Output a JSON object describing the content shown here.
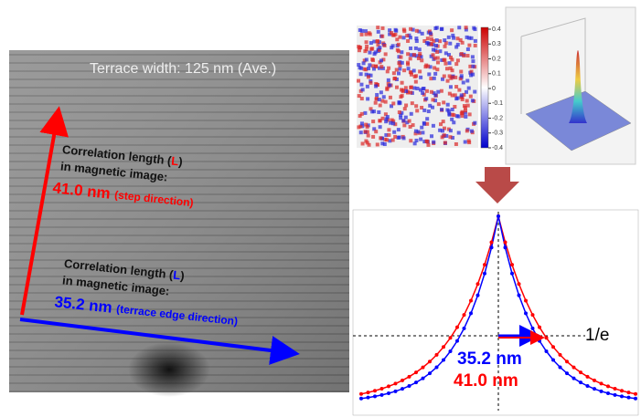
{
  "left_image": {
    "caption": "Terrace width: 125 nm (Ave.)",
    "step_note": {
      "line1_pre": "Correlation length (",
      "line1_L": "L",
      "line1_post": ")",
      "line2": "in magnetic image:",
      "value": "41.0 nm",
      "direction": "(step direction)"
    },
    "edge_note": {
      "line1_pre": "Correlation length (",
      "line1_L": "L",
      "line1_post": ")",
      "line2": "in magnetic image:",
      "value": "35.2 nm",
      "direction": "(terrace edge direction)"
    }
  },
  "colorbar": {
    "ticks": [
      0.4,
      0.3,
      0.2,
      0.1,
      0,
      -0.1,
      -0.2,
      -0.3,
      -0.4
    ]
  },
  "profile_plot": {
    "threshold_label": "1/e",
    "blue_value": "35.2 nm",
    "red_value": "41.0 nm"
  }
}
